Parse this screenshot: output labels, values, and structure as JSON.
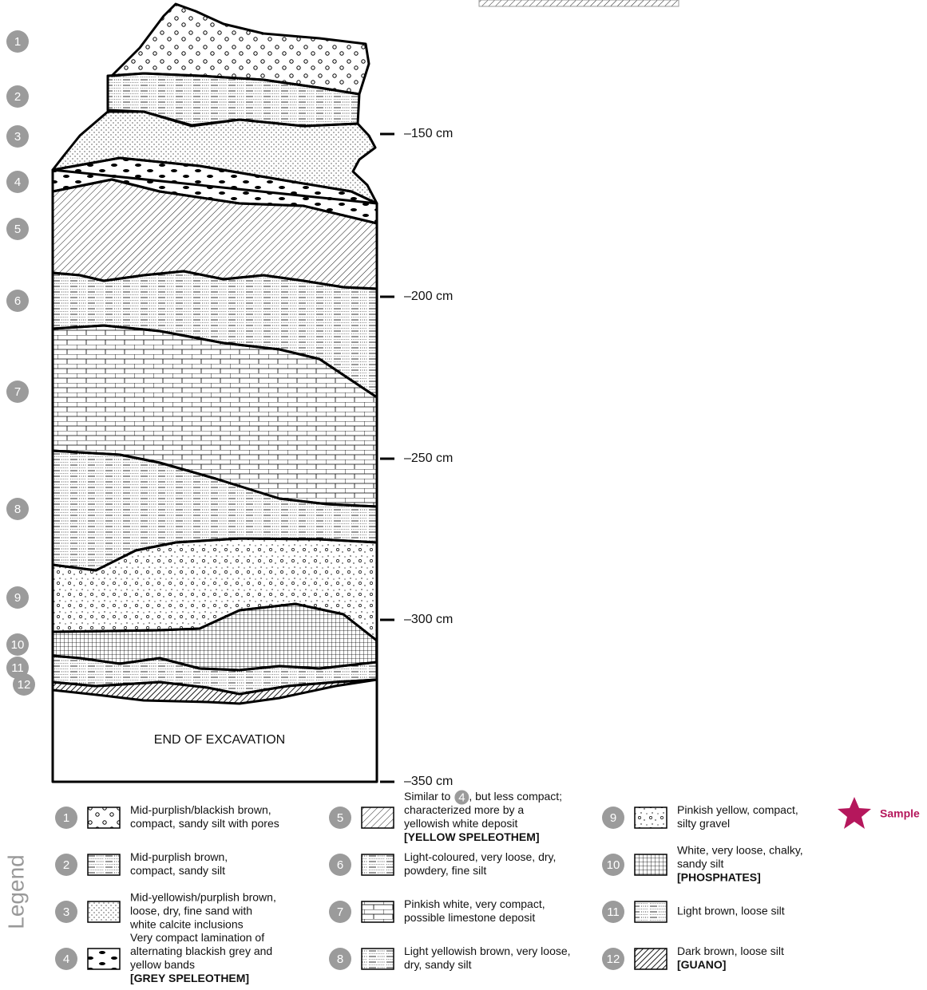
{
  "section": {
    "layers": [
      "1",
      "2",
      "3",
      "4",
      "5",
      "6",
      "7",
      "8",
      "9",
      "10",
      "11",
      "12"
    ],
    "depths": [
      "–150 cm",
      "–200 cm",
      "–250 cm",
      "–300 cm",
      "–350 cm"
    ],
    "end_label": "END OF EXCAVATION"
  },
  "legend": {
    "title": "Legend",
    "items": [
      {
        "number": "1",
        "lines": [
          "Mid-purplish/blackish brown,",
          "compact, sandy silt with pores"
        ]
      },
      {
        "number": "2",
        "lines": [
          "Mid-purplish brown,",
          "compact, sandy silt"
        ]
      },
      {
        "number": "3",
        "lines": [
          "Mid-yellowish/purplish brown,",
          "loose, dry, fine sand with",
          "white calcite inclusions"
        ]
      },
      {
        "number": "4",
        "lines": [
          "Very compact lamination of",
          "alternating blackish grey and",
          "yellow bands"
        ],
        "tag": "[GREY SPELEOTHEM]"
      },
      {
        "number": "5",
        "ref_line": {
          "before": "Similar to",
          "ref": "4",
          "after": ", but less compact;"
        },
        "lines": [
          "characterized more by a",
          "yellowish white deposit"
        ],
        "tag": "[YELLOW SPELEOTHEM]"
      },
      {
        "number": "6",
        "lines": [
          "Light-coloured, very loose, dry,",
          "powdery, fine silt"
        ]
      },
      {
        "number": "7",
        "lines": [
          "Pinkish white, very compact,",
          "possible limestone deposit"
        ]
      },
      {
        "number": "8",
        "lines": [
          "Light yellowish brown, very loose,",
          "dry, sandy silt"
        ]
      },
      {
        "number": "9",
        "lines": [
          "Pinkish yellow, compact,",
          "silty gravel"
        ]
      },
      {
        "number": "10",
        "lines": [
          "White, very loose, chalky,",
          "sandy silt"
        ],
        "tag": "[PHOSPHATES]"
      },
      {
        "number": "11",
        "lines": [
          "Light brown, loose silt"
        ]
      },
      {
        "number": "12",
        "lines": [
          "Dark brown, loose silt"
        ],
        "tag": "[GUANO]"
      }
    ],
    "sample": "Sample"
  }
}
